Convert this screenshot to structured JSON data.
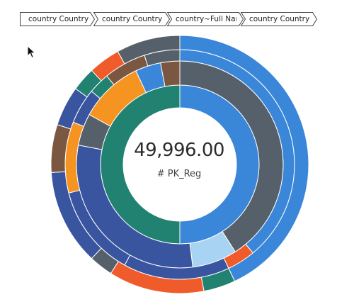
{
  "breadcrumb": [
    {
      "label": "country Country S..."
    },
    {
      "label": "country Country I..."
    },
    {
      "label": "country~Full Name"
    },
    {
      "label": "country Country R..."
    }
  ],
  "center": {
    "value": "49,996.00",
    "label": "# PK_Reg"
  },
  "colors": {
    "blue": "#3a86d8",
    "slate": "#56606b",
    "navy": "#3a55a0",
    "teal": "#228272",
    "orange": "#f59420",
    "red": "#ef5b2a",
    "brown": "#7b5742",
    "lightblue": "#a9d3f3"
  },
  "chart_data": {
    "type": "sunburst",
    "total": 49996.0,
    "rings": [
      {
        "level": 1,
        "slices": [
          {
            "color": "blue",
            "share": 0.5
          },
          {
            "color": "teal",
            "share": 0.5
          }
        ]
      },
      {
        "level": 2,
        "slices": [
          {
            "color": "slate",
            "share": 0.41
          },
          {
            "color": "lightblue",
            "share": 0.07
          },
          {
            "color": "navy",
            "share": 0.3
          },
          {
            "color": "slate",
            "share": 0.05
          },
          {
            "color": "orange",
            "share": 0.1
          },
          {
            "color": "blue",
            "share": 0.04
          },
          {
            "color": "brown",
            "share": 0.03
          }
        ]
      },
      {
        "level": 3,
        "slices": [
          {
            "color": "blue",
            "share": 0.39
          },
          {
            "color": "red",
            "share": 0.04
          },
          {
            "color": "navy",
            "share": 0.15
          },
          {
            "color": "navy",
            "share": 0.13
          },
          {
            "color": "orange",
            "share": 0.1
          },
          {
            "color": "navy",
            "share": 0.05
          },
          {
            "color": "teal",
            "share": 0.03
          },
          {
            "color": "brown",
            "share": 0.06
          },
          {
            "color": "slate",
            "share": 0.05
          }
        ]
      },
      {
        "level": 4,
        "slices": [
          {
            "color": "blue",
            "share": 0.43
          },
          {
            "color": "teal",
            "share": 0.04
          },
          {
            "color": "red",
            "share": 0.12
          },
          {
            "color": "slate",
            "share": 0.03
          },
          {
            "color": "navy",
            "share": 0.12
          },
          {
            "color": "brown",
            "share": 0.06
          },
          {
            "color": "navy",
            "share": 0.05
          },
          {
            "color": "teal",
            "share": 0.03
          },
          {
            "color": "red",
            "share": 0.04
          },
          {
            "color": "slate",
            "share": 0.08
          }
        ]
      }
    ]
  }
}
